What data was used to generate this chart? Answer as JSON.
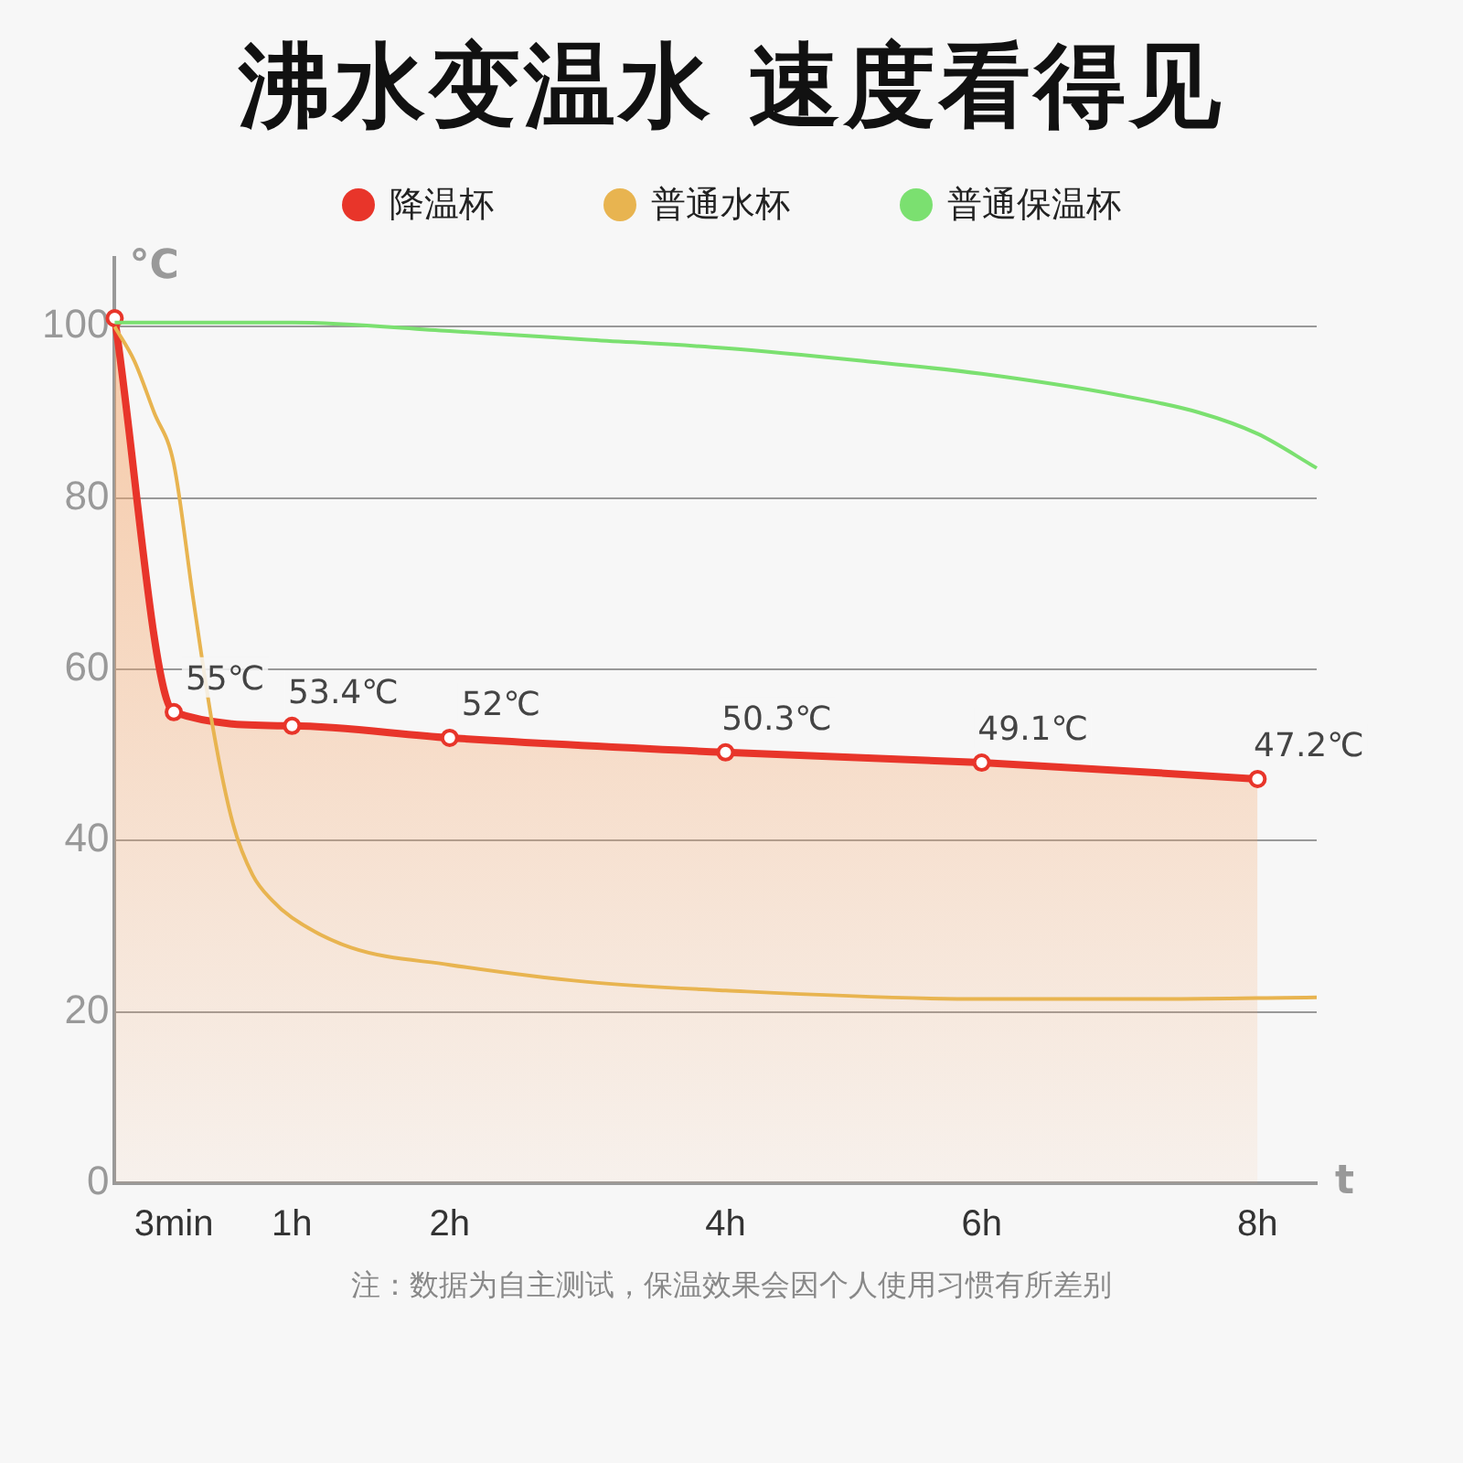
{
  "chart_data": {
    "type": "line",
    "title": "沸水变温水 速度看得见",
    "xlabel": "t",
    "ylabel": "°C",
    "categories": [
      null,
      null,
      null,
      "3min",
      null,
      null,
      null,
      null,
      null,
      "1h",
      null,
      null,
      null,
      null,
      null,
      null,
      null,
      "2h",
      null,
      null,
      null,
      null,
      null,
      null,
      null,
      null,
      null,
      null,
      null,
      null,
      null,
      "4h",
      null,
      null,
      null,
      null,
      null,
      null,
      null,
      null,
      null,
      null,
      null,
      null,
      "6h",
      null,
      null,
      null,
      null,
      null,
      null,
      null,
      null,
      null,
      null,
      null,
      null,
      null,
      "8h",
      null,
      null,
      null
    ],
    "ylim": [
      0,
      108
    ],
    "yticks": [
      0,
      20,
      40,
      60,
      80,
      100
    ],
    "grid": "y",
    "legend": "top",
    "series": [
      {
        "name": "降温杯",
        "type": "area",
        "color": "#e8352a",
        "marker": "circle",
        "values": [
          101,
          null,
          null,
          55,
          null,
          null,
          null,
          null,
          null,
          53.4,
          null,
          null,
          null,
          null,
          null,
          null,
          null,
          52,
          null,
          null,
          null,
          null,
          null,
          null,
          null,
          null,
          null,
          null,
          null,
          null,
          null,
          50.3,
          null,
          null,
          null,
          null,
          null,
          null,
          null,
          null,
          null,
          null,
          null,
          null,
          49.1,
          null,
          null,
          null,
          null,
          null,
          null,
          null,
          null,
          null,
          null,
          null,
          null,
          null,
          47.2,
          null,
          null,
          null
        ],
        "value_labels": [
          null,
          null,
          null,
          "55℃",
          null,
          null,
          null,
          null,
          null,
          "53.4℃",
          null,
          null,
          null,
          null,
          null,
          null,
          null,
          "52℃",
          null,
          null,
          null,
          null,
          null,
          null,
          null,
          null,
          null,
          null,
          null,
          null,
          null,
          "50.3℃",
          null,
          null,
          null,
          null,
          null,
          null,
          null,
          null,
          null,
          null,
          null,
          null,
          "49.1℃",
          null,
          null,
          null,
          null,
          null,
          null,
          null,
          null,
          null,
          null,
          null,
          null,
          null,
          "47.2℃",
          null,
          null,
          null
        ]
      },
      {
        "name": "普通水杯",
        "color": "#e8b450",
        "values": [
          100,
          96,
          90,
          84,
          68,
          53,
          42,
          36,
          33,
          31,
          null,
          null,
          27.5,
          null,
          null,
          null,
          null,
          25.5,
          null,
          null,
          null,
          null,
          null,
          null,
          23.5,
          null,
          null,
          null,
          null,
          null,
          null,
          22.5,
          null,
          null,
          null,
          null,
          null,
          null,
          null,
          null,
          null,
          null,
          null,
          null,
          21.5,
          null,
          null,
          null,
          null,
          null,
          null,
          null,
          21.5,
          null,
          null,
          null,
          null,
          null,
          null,
          null,
          null,
          21.7
        ]
      },
      {
        "name": "普通保温杯",
        "color": "#7be070",
        "values": [
          100.5,
          null,
          null,
          null,
          null,
          null,
          null,
          null,
          null,
          100.5,
          null,
          null,
          null,
          null,
          null,
          null,
          null,
          99.5,
          null,
          null,
          null,
          null,
          null,
          null,
          98.5,
          null,
          null,
          null,
          null,
          null,
          null,
          97.5,
          null,
          null,
          null,
          null,
          null,
          null,
          96,
          null,
          null,
          null,
          null,
          null,
          94.5,
          null,
          null,
          null,
          null,
          null,
          null,
          92,
          null,
          null,
          null,
          90,
          null,
          null,
          87.5,
          null,
          null,
          83.5
        ]
      }
    ],
    "annotations": [
      "注：数据为自主测试，保温效果会因个人使用习惯有所差别"
    ]
  }
}
